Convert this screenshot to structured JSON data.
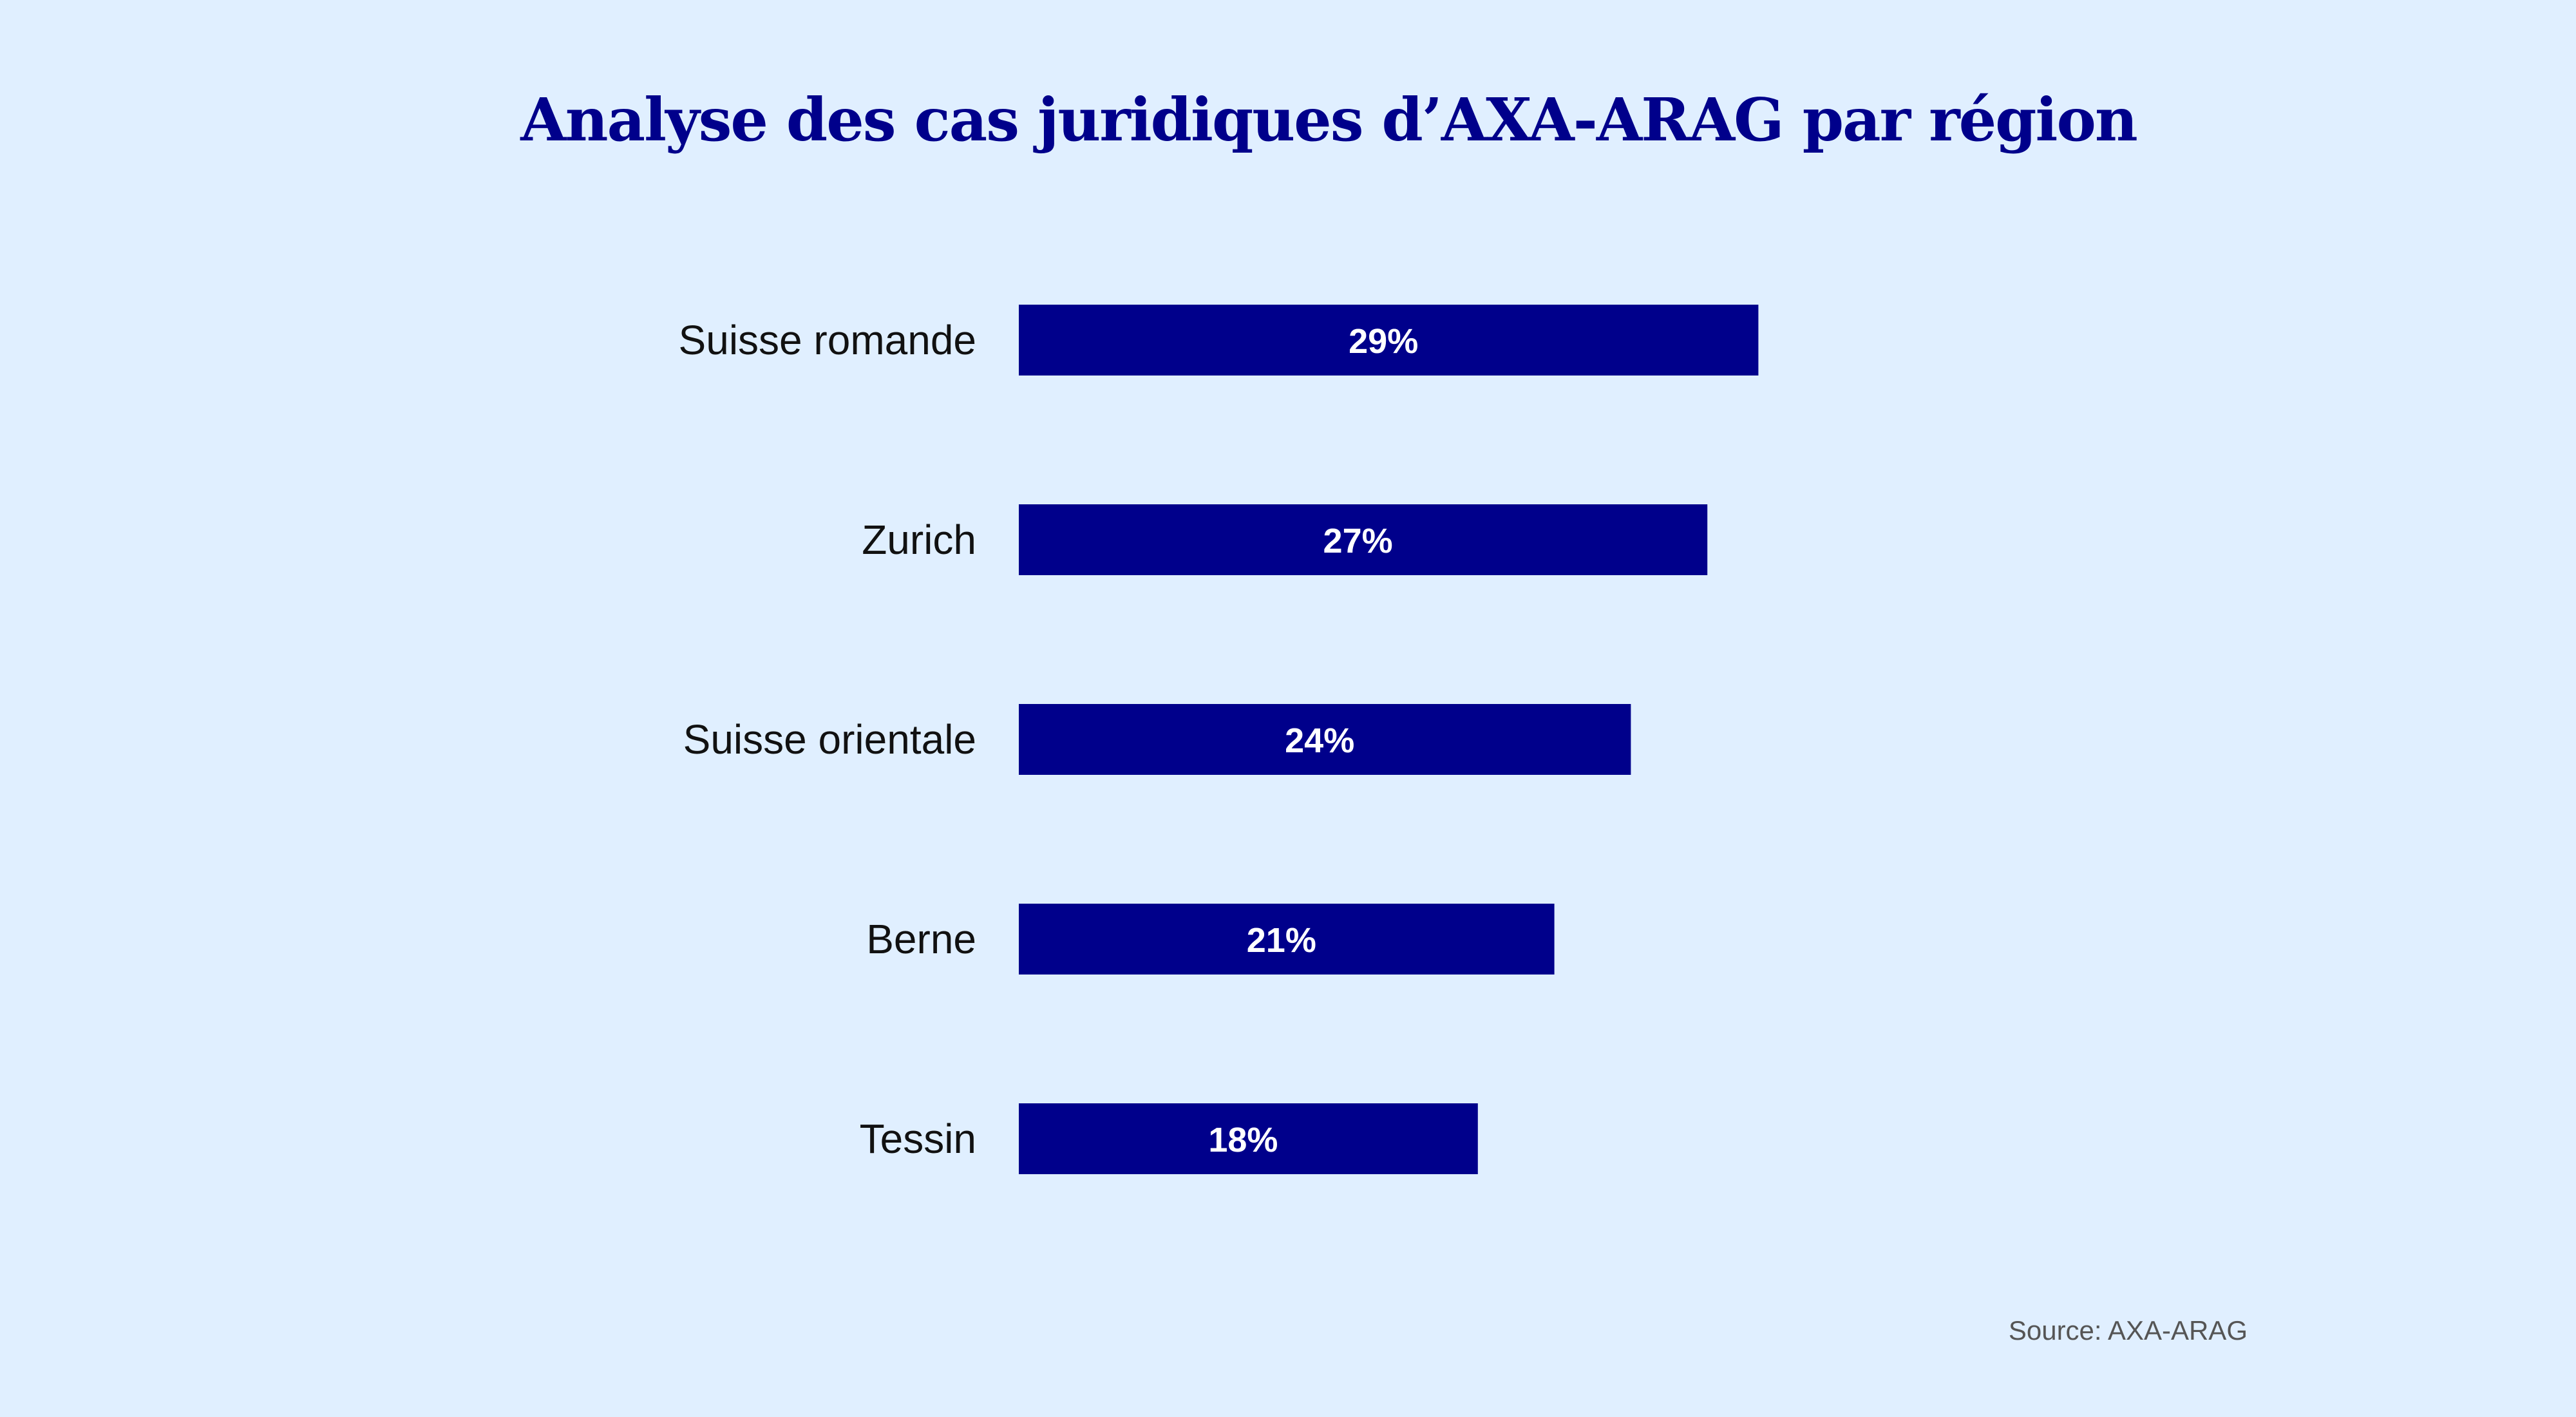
{
  "chart_data": {
    "type": "bar",
    "orientation": "horizontal",
    "title": "Analyse des cas juridiques d’AXA-ARAG par région",
    "categories": [
      "Suisse romande",
      "Zurich",
      "Suisse orientale",
      "Berne",
      "Tessin"
    ],
    "values": [
      29,
      27,
      24,
      21,
      18
    ],
    "value_labels": [
      "29%",
      "27%",
      "24%",
      "21%",
      "18%"
    ],
    "unit": "%",
    "grid": false,
    "legend": "none",
    "source": "Source: AXA-ARAG",
    "bar_color": "#00008b",
    "background_color": "#e0efff",
    "value_label_color": "#ffffff"
  }
}
